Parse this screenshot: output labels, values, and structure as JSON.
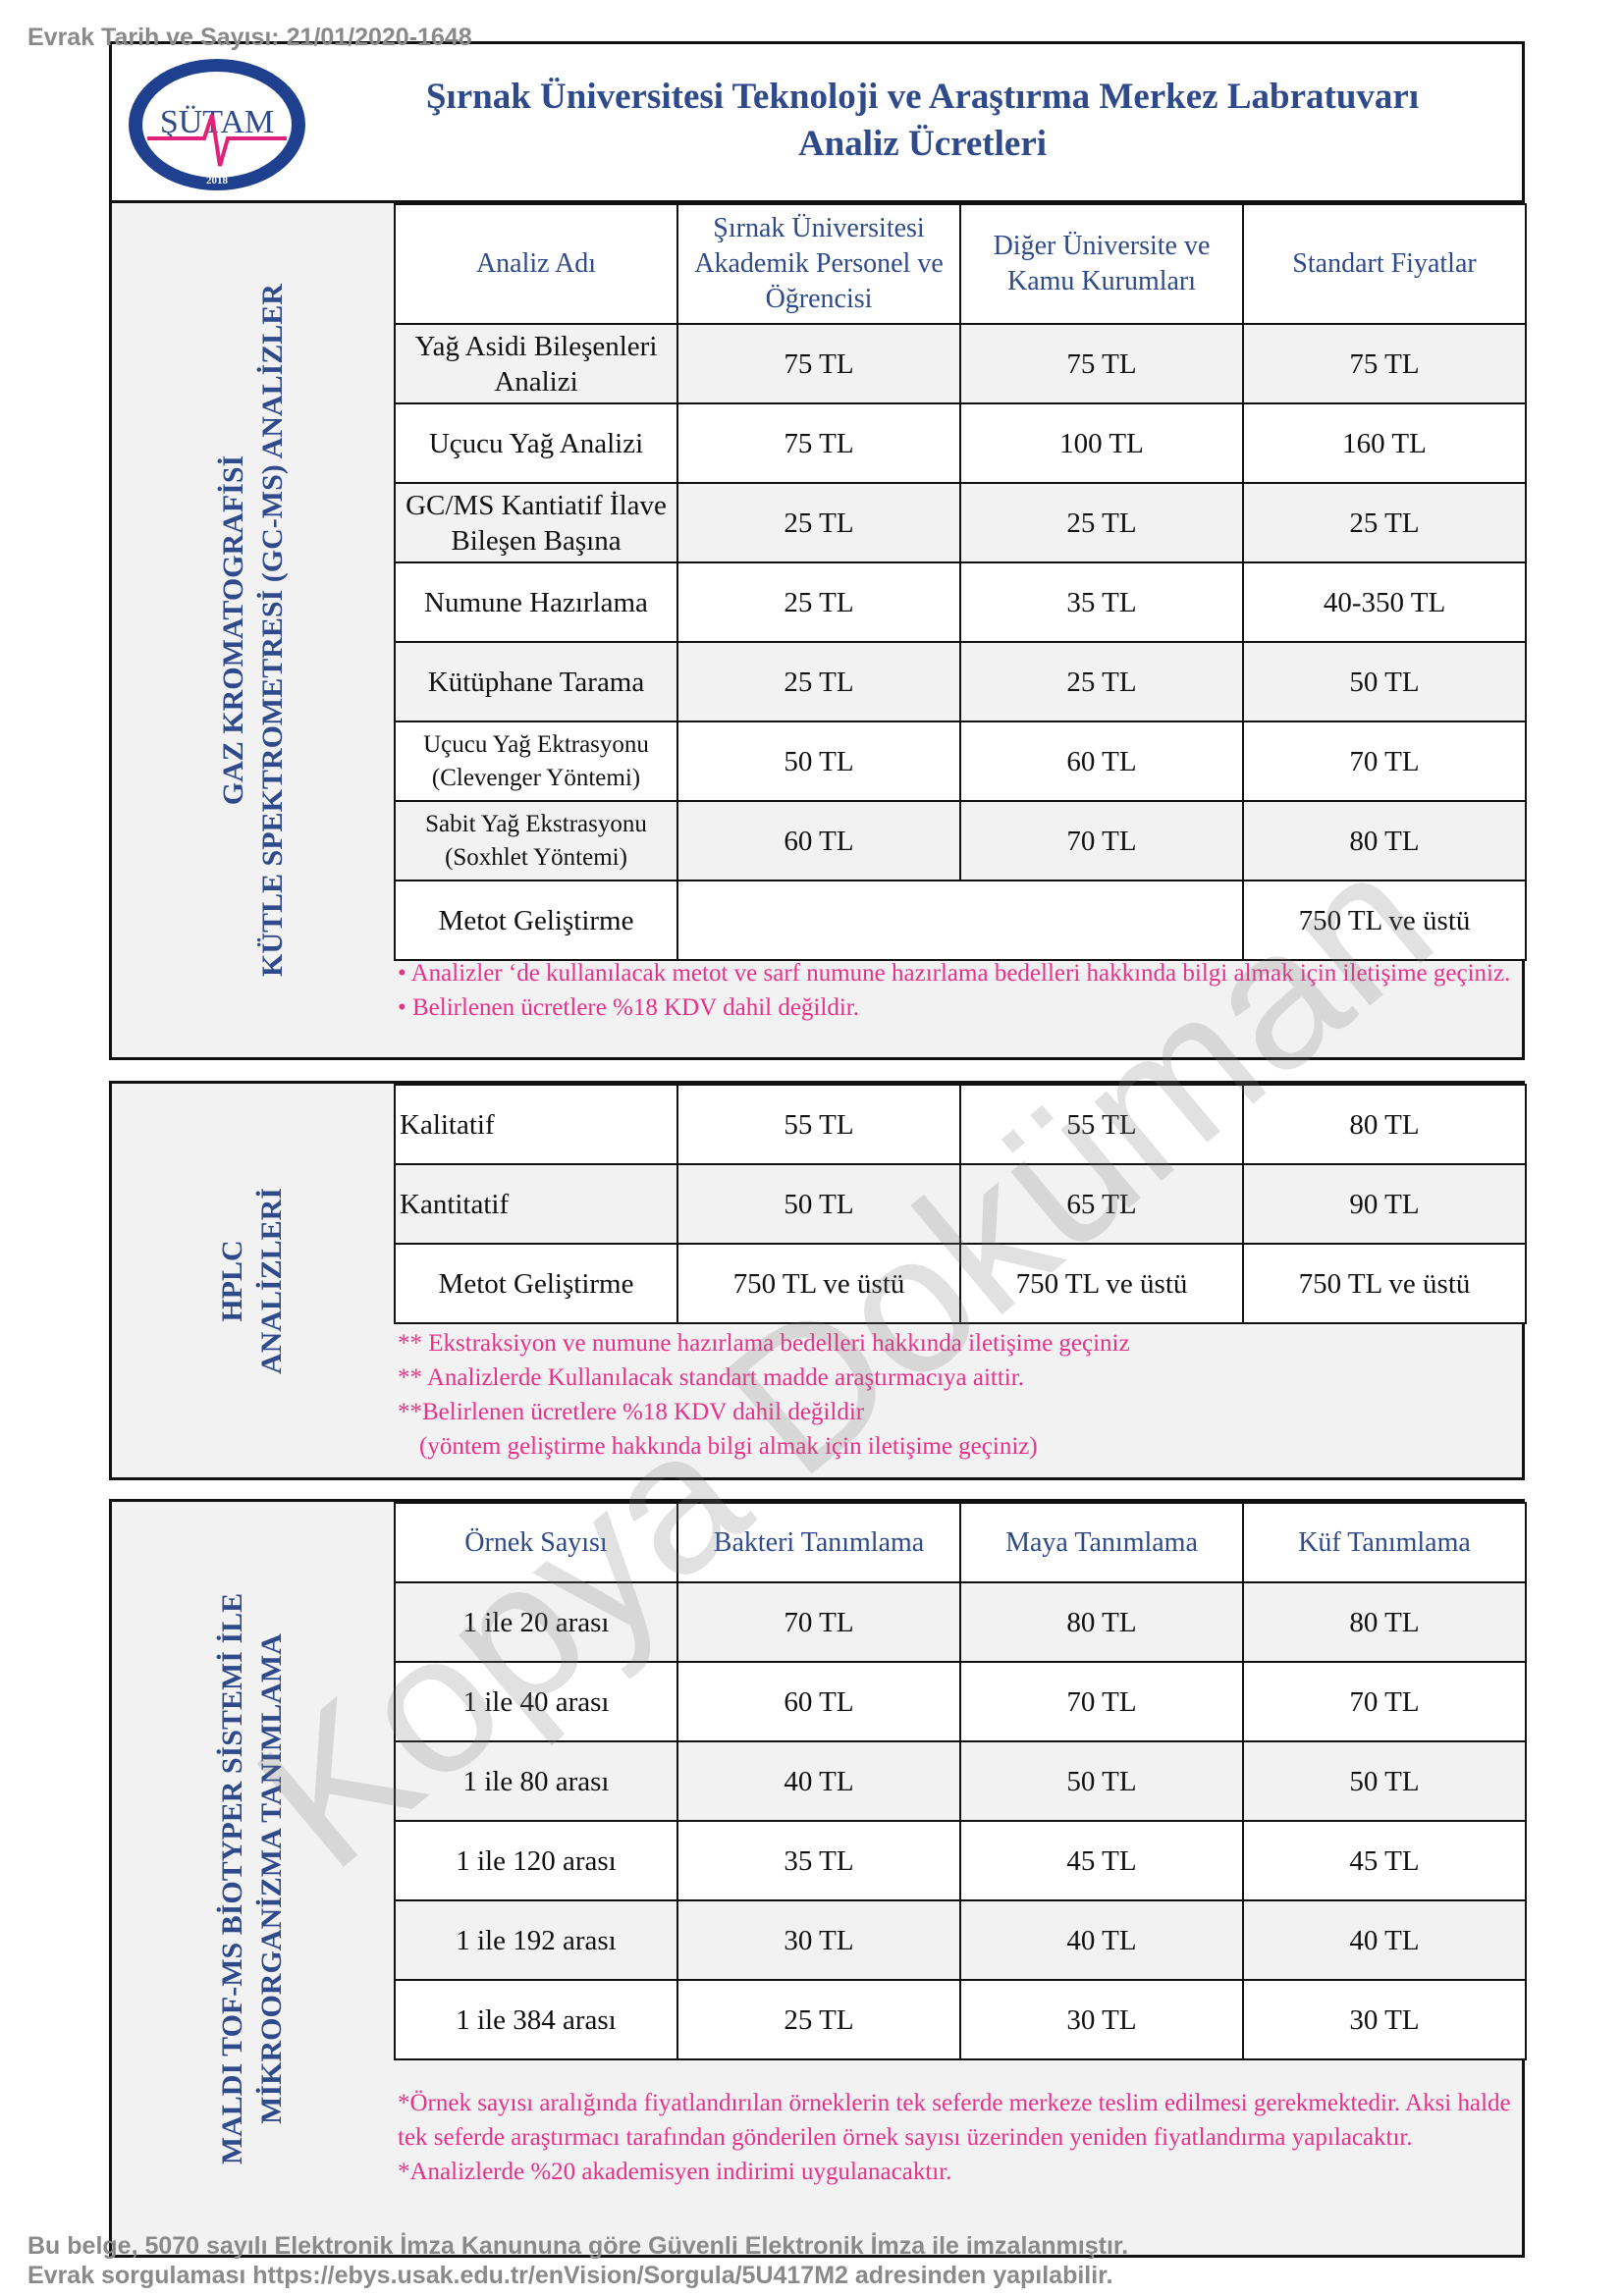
{
  "stamp_top": "Evrak Tarih ve Sayısı: 21/01/2020-1648",
  "stamp_bottom": [
    "Bu belge, 5070 sayılı Elektronik İmza Kanununa göre Güvenli Elektronik İmza ile imzalanmıştır.",
    "Evrak sorgulaması https://ebys.usak.edu.tr/enVision/Sorgula/5U417M2 adresinden yapılabilir."
  ],
  "logo": {
    "text": "ŞÜTAM",
    "ring_text": "Şırnak Üniversitesi Teknoloji ve Araştırma Merkezi",
    "year": "2018"
  },
  "header": {
    "title_line1": "Şırnak Üniversitesi Teknoloji ve Araştırma Merkez Labratuvarı",
    "title_line2": "Analiz Ücretleri"
  },
  "watermark": "Kopya Doküman",
  "colors": {
    "heading": "#2e4a8b",
    "note": "#e8318a",
    "shade": "#f2f2f2"
  },
  "gcms": {
    "side": [
      "GAZ KROMATOGRAFİSİ",
      "KÜTLE SPEKTROMETRESİ (GC-MS) ANALİZLER"
    ],
    "headers": [
      "Analiz Adı",
      "Şırnak Üniversitesi Akademik Personel ve Öğrencisi",
      "Diğer Üniversite ve Kamu Kurumları",
      "Standart Fiyatlar"
    ],
    "rows": [
      [
        "Yağ Asidi Bileşenleri Analizi",
        "75 TL",
        "75 TL",
        "75 TL"
      ],
      [
        "Uçucu Yağ Analizi",
        "75 TL",
        "100 TL",
        "160 TL"
      ],
      [
        "GC/MS Kantiatif İlave Bileşen Başına",
        "25 TL",
        "25 TL",
        "25 TL"
      ],
      [
        "Numune Hazırlama",
        "25 TL",
        "35 TL",
        "40-350 TL"
      ],
      [
        "Kütüphane Tarama",
        "25 TL",
        "25 TL",
        "50 TL"
      ],
      [
        "Uçucu Yağ Ektrasyonu (Clevenger Yöntemi)",
        "50 TL",
        "60 TL",
        "70 TL"
      ],
      [
        "Sabit Yağ Ekstrasyonu (Soxhlet Yöntemi)",
        "60 TL",
        "70 TL",
        "80 TL"
      ]
    ],
    "metot": {
      "name": "Metot Geliştirme",
      "price": "750 TL ve üstü"
    },
    "notes": [
      "• Analizler ‘de kullanılacak metot ve sarf numune hazırlama bedelleri hakkında bilgi almak için iletişime geçiniz.",
      "• Belirlenen ücretlere %18 KDV dahil değildir."
    ]
  },
  "hplc": {
    "side": [
      "HPLC",
      "ANALİZLERİ"
    ],
    "rows": [
      [
        "Kalitatif",
        "55 TL",
        "55 TL",
        "80 TL"
      ],
      [
        "Kantitatif",
        "50 TL",
        "65 TL",
        "90 TL"
      ],
      [
        "Metot Geliştirme",
        "750 TL ve üstü",
        "750 TL ve üstü",
        "750 TL ve üstü"
      ]
    ],
    "notes": [
      "** Ekstraksiyon ve numune hazırlama bedelleri hakkında iletişime geçiniz",
      "** Analizlerde Kullanılacak standart madde araştırmacıya aittir.",
      "**Belirlenen ücretlere %18 KDV dahil değildir",
      "(yöntem geliştirme hakkında bilgi almak için iletişime geçiniz)"
    ]
  },
  "maldi": {
    "side": [
      "MALDI TOF-MS BİOTYPER SİSTEMİ İLE",
      "MİKROORGANİZMA TANIMLAMA"
    ],
    "headers": [
      "Örnek Sayısı",
      "Bakteri Tanımlama",
      "Maya Tanımlama",
      "Küf Tanımlama"
    ],
    "rows": [
      [
        "1 ile 20 arası",
        "70 TL",
        "80 TL",
        "80 TL"
      ],
      [
        "1 ile 40 arası",
        "60 TL",
        "70 TL",
        "70 TL"
      ],
      [
        "1 ile 80 arası",
        "40 TL",
        "50 TL",
        "50 TL"
      ],
      [
        "1 ile 120 arası",
        "35 TL",
        "45 TL",
        "45 TL"
      ],
      [
        "1 ile 192 arası",
        "30 TL",
        "40 TL",
        "40 TL"
      ],
      [
        "1 ile 384 arası",
        "25 TL",
        "30 TL",
        "30 TL"
      ]
    ],
    "notes": [
      "*Örnek sayısı aralığında fiyatlandırılan örneklerin tek seferde merkeze teslim edilmesi gerekmektedir. Aksi halde tek seferde araştırmacı tarafından gönderilen örnek sayısı üzerinden yeniden fiyatlandırma yapılacaktır.",
      "*Analizlerde %20 akademisyen indirimi uygulanacaktır."
    ]
  }
}
